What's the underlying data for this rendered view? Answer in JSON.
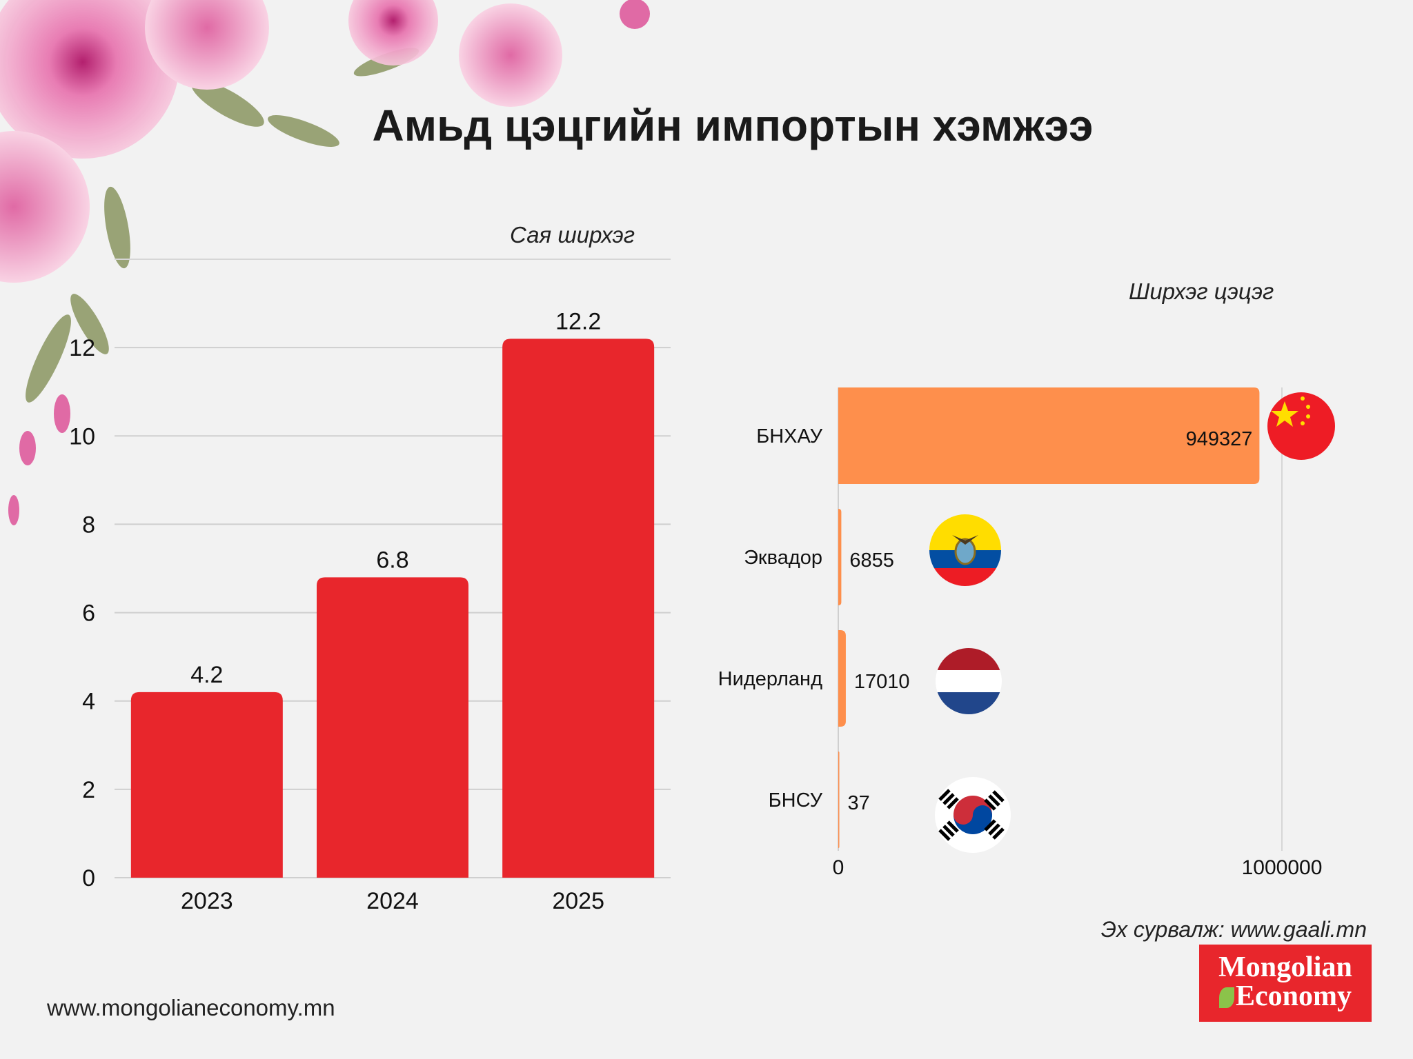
{
  "title": "Амьд цэцгийн импортын хэмжээ",
  "footer": {
    "source": "Эх сурвалж: www.gaali.mn",
    "website": "www.mongolianeconomy.mn",
    "logo_line1": "Mongolian",
    "logo_line2": "Economy"
  },
  "colors": {
    "background": "#f2f2f2",
    "bar_left": "#e8262c",
    "bar_right": "#fe8f4c",
    "logo": "#e8262c"
  },
  "chart_data": [
    {
      "type": "bar",
      "orientation": "vertical",
      "unit_label": "Сая ширхэг",
      "categories": [
        "2023",
        "2024",
        "2025"
      ],
      "values": [
        4.2,
        6.8,
        12.2
      ],
      "data_labels": [
        "4.2",
        "6.8",
        "12.2"
      ],
      "ylim": [
        0,
        14
      ],
      "yticks": [
        0,
        2,
        4,
        6,
        8,
        10,
        12
      ],
      "grid": true
    },
    {
      "type": "bar",
      "orientation": "horizontal",
      "unit_label": "Ширхэг цэцэг",
      "categories": [
        "БНХАУ",
        "Эквадор",
        "Нидерланд",
        "БНСУ"
      ],
      "values": [
        949327,
        6855,
        17010,
        37
      ],
      "data_labels": [
        "949327",
        "6855",
        "17010",
        "37"
      ],
      "flags": [
        "china-flag-icon",
        "ecuador-flag-icon",
        "netherlands-flag-icon",
        "south-korea-flag-icon"
      ],
      "xlim": [
        0,
        1000000
      ],
      "xticks": [
        "0",
        "1000000"
      ],
      "grid": true
    }
  ]
}
